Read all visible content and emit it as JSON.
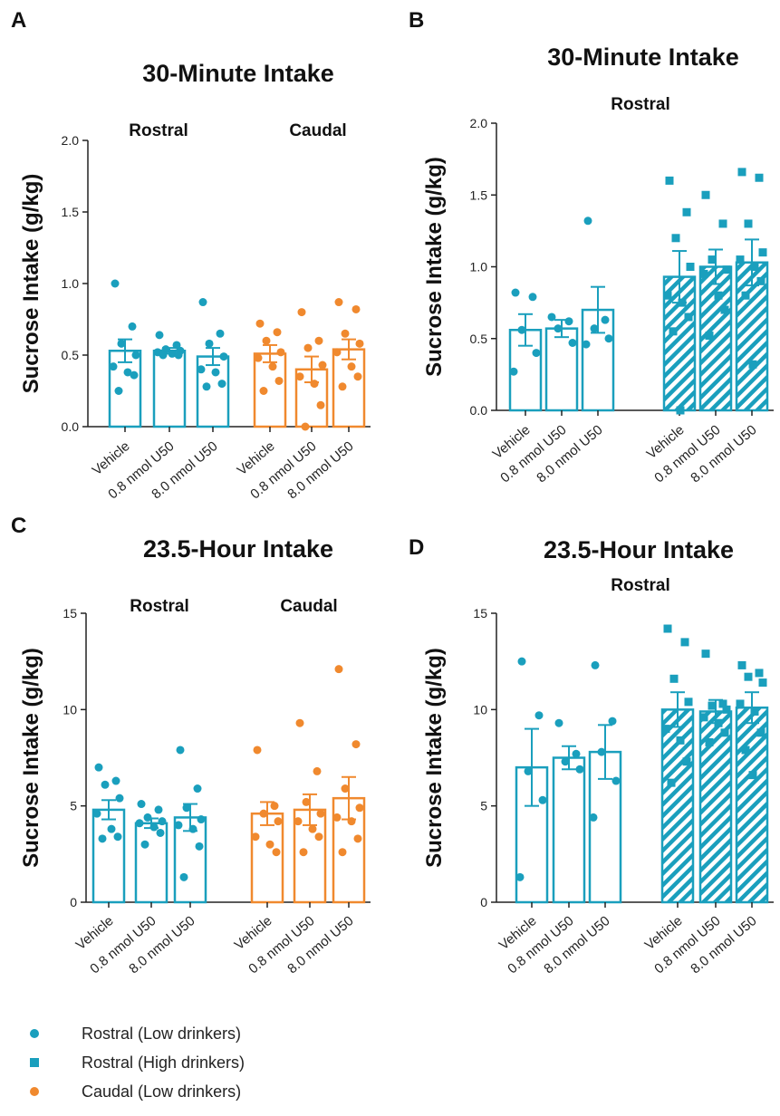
{
  "colors": {
    "rostral": "#1a9fbd",
    "caudal": "#f0892e",
    "axis": "#222222"
  },
  "legend": {
    "items": [
      {
        "label": "Rostral (Low drinkers)",
        "marker": "circle",
        "color": "#1a9fbd"
      },
      {
        "label": "Rostral (High drinkers)",
        "marker": "square",
        "color": "#1a9fbd"
      },
      {
        "label": "Caudal (Low drinkers)",
        "marker": "circle",
        "color": "#f0892e"
      }
    ]
  },
  "chart_data": [
    {
      "panel": "A",
      "type": "bar",
      "title": "30-Minute Intake",
      "ylabel": "Sucrose Intake  (g/kg)",
      "ylim": [
        0,
        2
      ],
      "yticks": [
        "0.0",
        "0.5",
        "1.0",
        "1.5",
        "2.0"
      ],
      "categories": [
        "Vehicle",
        "0.8 nmol U50",
        "8.0 nmol U50"
      ],
      "groups": [
        {
          "name": "Rostral",
          "color": "rostral",
          "pattern": "none",
          "marker": "circle",
          "means": [
            0.53,
            0.53,
            0.49
          ],
          "sems": [
            0.08,
            0.02,
            0.06
          ],
          "points": [
            [
              1.0,
              0.7,
              0.58,
              0.5,
              0.42,
              0.38,
              0.36,
              0.25
            ],
            [
              0.64,
              0.57,
              0.54,
              0.53,
              0.52,
              0.51,
              0.5,
              0.5
            ],
            [
              0.87,
              0.65,
              0.58,
              0.49,
              0.4,
              0.38,
              0.3,
              0.28
            ]
          ]
        },
        {
          "name": "Caudal",
          "color": "caudal",
          "pattern": "none",
          "marker": "circle",
          "means": [
            0.51,
            0.4,
            0.54
          ],
          "sems": [
            0.06,
            0.09,
            0.07
          ],
          "points": [
            [
              0.72,
              0.66,
              0.6,
              0.52,
              0.48,
              0.42,
              0.32,
              0.25
            ],
            [
              0.8,
              0.6,
              0.55,
              0.43,
              0.35,
              0.3,
              0.15,
              0.0
            ],
            [
              0.87,
              0.82,
              0.65,
              0.58,
              0.52,
              0.42,
              0.35,
              0.28
            ]
          ]
        }
      ]
    },
    {
      "panel": "B",
      "type": "bar",
      "title": "30-Minute Intake",
      "ylabel": "Sucrose Intake  (g/kg)",
      "ylim": [
        0,
        2
      ],
      "yticks": [
        "0.0",
        "0.5",
        "1.0",
        "1.5",
        "2.0"
      ],
      "categories": [
        "Vehicle",
        "0.8 nmol U50",
        "8.0 nmol U50"
      ],
      "groups": [
        {
          "name": "Rostral",
          "color": "rostral",
          "pattern": "none",
          "marker": "circle",
          "means": [
            0.56,
            0.57,
            0.7
          ],
          "sems": [
            0.11,
            0.06,
            0.16
          ],
          "points": [
            [
              0.82,
              0.79,
              0.56,
              0.4,
              0.27
            ],
            [
              0.65,
              0.62,
              0.57,
              0.47
            ],
            [
              1.32,
              0.63,
              0.57,
              0.5,
              0.46
            ]
          ]
        },
        {
          "name": "",
          "color": "rostral",
          "pattern": "hatch",
          "marker": "square",
          "means": [
            0.93,
            1.0,
            1.03
          ],
          "sems": [
            0.18,
            0.12,
            0.16
          ],
          "points": [
            [
              1.6,
              1.38,
              1.2,
              1.0,
              0.8,
              0.75,
              0.65,
              0.55,
              0.0
            ],
            [
              1.5,
              1.3,
              1.05,
              0.98,
              0.95,
              0.8,
              0.7,
              0.52
            ],
            [
              1.66,
              1.62,
              1.3,
              1.1,
              1.05,
              1.0,
              0.9,
              0.8,
              0.32
            ]
          ]
        }
      ]
    },
    {
      "panel": "C",
      "type": "bar",
      "title": "23.5-Hour Intake",
      "ylabel": "Sucrose Intake  (g/kg)",
      "ylim": [
        0,
        15
      ],
      "yticks": [
        "0",
        "5",
        "10",
        "15"
      ],
      "categories": [
        "Vehicle",
        "0.8 nmol U50",
        "8.0 nmol U50"
      ],
      "groups": [
        {
          "name": "Rostral",
          "color": "rostral",
          "pattern": "none",
          "marker": "circle",
          "means": [
            4.8,
            4.1,
            4.4
          ],
          "sems": [
            0.5,
            0.25,
            0.7
          ],
          "points": [
            [
              7.0,
              6.3,
              6.1,
              5.4,
              4.6,
              3.8,
              3.4,
              3.3
            ],
            [
              5.1,
              4.8,
              4.4,
              4.2,
              4.1,
              3.9,
              3.6,
              3.0
            ],
            [
              7.9,
              5.9,
              4.9,
              4.3,
              4.0,
              3.8,
              2.9,
              1.3
            ]
          ]
        },
        {
          "name": "Caudal",
          "color": "caudal",
          "pattern": "none",
          "marker": "circle",
          "means": [
            4.6,
            4.8,
            5.4
          ],
          "sems": [
            0.6,
            0.8,
            1.1
          ],
          "points": [
            [
              7.9,
              5.0,
              4.6,
              4.2,
              3.4,
              3.0,
              2.6
            ],
            [
              9.3,
              6.8,
              5.2,
              4.6,
              4.2,
              3.8,
              3.4,
              2.6
            ],
            [
              12.1,
              8.2,
              5.9,
              4.9,
              4.4,
              4.2,
              3.3,
              2.6
            ]
          ]
        }
      ]
    },
    {
      "panel": "D",
      "type": "bar",
      "title": "23.5-Hour Intake",
      "ylabel": "Sucrose Intake  (g/kg)",
      "ylim": [
        0,
        15
      ],
      "yticks": [
        "0",
        "5",
        "10",
        "15"
      ],
      "categories": [
        "Vehicle",
        "0.8 nmol U50",
        "8.0 nmol U50"
      ],
      "groups": [
        {
          "name": "Rostral",
          "color": "rostral",
          "pattern": "none",
          "marker": "circle",
          "means": [
            7.0,
            7.5,
            7.8
          ],
          "sems": [
            2.0,
            0.6,
            1.4
          ],
          "points": [
            [
              12.5,
              9.7,
              6.8,
              5.3,
              1.3
            ],
            [
              9.3,
              7.7,
              7.3,
              6.9
            ],
            [
              12.3,
              9.4,
              7.8,
              6.3,
              4.4
            ]
          ]
        },
        {
          "name": "",
          "color": "rostral",
          "pattern": "hatch",
          "marker": "square",
          "means": [
            10.0,
            9.9,
            10.1
          ],
          "sems": [
            0.9,
            0.6,
            0.8
          ],
          "points": [
            [
              14.2,
              13.5,
              11.6,
              10.4,
              9.0,
              8.4,
              7.3,
              6.2
            ],
            [
              12.9,
              10.3,
              10.2,
              10.0,
              9.6,
              9.3,
              8.8,
              8.3
            ],
            [
              12.3,
              11.9,
              11.7,
              11.4,
              10.3,
              9.9,
              8.8,
              7.9,
              6.6
            ]
          ]
        }
      ]
    }
  ]
}
